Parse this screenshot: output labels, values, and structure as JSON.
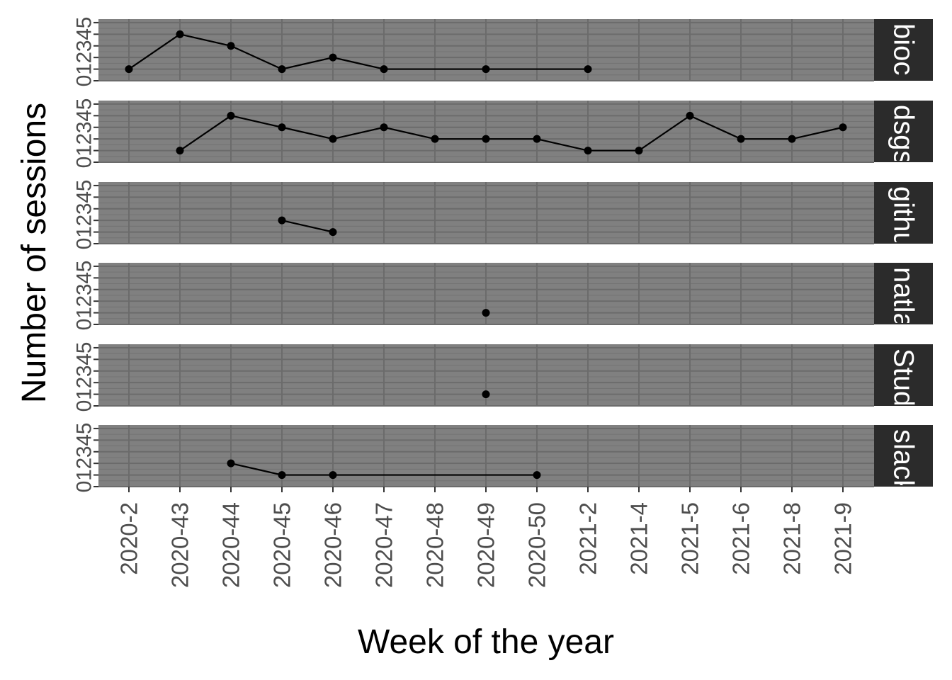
{
  "chart_data": {
    "type": "line",
    "xlabel": "Week of the year",
    "ylabel": "Number of sessions",
    "categories": [
      "2020-2",
      "2020-43",
      "2020-44",
      "2020-45",
      "2020-46",
      "2020-47",
      "2020-48",
      "2020-49",
      "2020-50",
      "2021-2",
      "2021-4",
      "2021-5",
      "2021-6",
      "2021-8",
      "2021-9"
    ],
    "y_ticks": [
      "0",
      "1",
      "2",
      "3",
      "4",
      "5"
    ],
    "ylim": [
      0,
      5.3
    ],
    "grid": true,
    "panels": [
      {
        "strip": "bioc",
        "points": [
          [
            "2020-2",
            1
          ],
          [
            "2020-43",
            4
          ],
          [
            "2020-44",
            3
          ],
          [
            "2020-45",
            1
          ],
          [
            "2020-46",
            2
          ],
          [
            "2020-47",
            1
          ],
          [
            "2020-49",
            1
          ],
          [
            "2021-2",
            1
          ]
        ]
      },
      {
        "strip": "dsgs",
        "points": [
          [
            "2020-43",
            1
          ],
          [
            "2020-44",
            4
          ],
          [
            "2020-45",
            3
          ],
          [
            "2020-46",
            2
          ],
          [
            "2020-47",
            3
          ],
          [
            "2020-48",
            2
          ],
          [
            "2020-49",
            2
          ],
          [
            "2020-50",
            2
          ],
          [
            "2021-2",
            1
          ],
          [
            "2021-4",
            1
          ],
          [
            "2021-5",
            4
          ],
          [
            "2021-6",
            2
          ],
          [
            "2021-8",
            2
          ],
          [
            "2021-9",
            3
          ]
        ]
      },
      {
        "strip": "githuk",
        "points": [
          [
            "2020-45",
            2
          ],
          [
            "2020-46",
            1
          ]
        ]
      },
      {
        "strip": "natlab",
        "points": [
          [
            "2020-49",
            1
          ]
        ]
      },
      {
        "strip": "Studs",
        "points": [
          [
            "2020-49",
            1
          ]
        ]
      },
      {
        "strip": "slack",
        "points": [
          [
            "2020-44",
            2
          ],
          [
            "2020-45",
            1
          ],
          [
            "2020-46",
            1
          ],
          [
            "2020-50",
            1
          ]
        ]
      }
    ]
  },
  "colors": {
    "panel_bg": "#808080",
    "grid_major": "#6b6b6b",
    "grid_minor": "#737373",
    "strip_bg": "#2b2b2b",
    "line": "#000000",
    "tick_text": "#4d4d4d"
  }
}
